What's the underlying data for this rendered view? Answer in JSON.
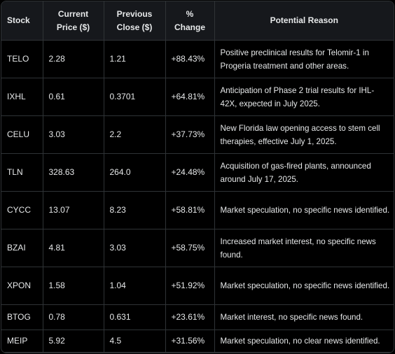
{
  "table": {
    "header": [
      "Stock",
      "Current Price ($)",
      "Previous Close ($)",
      "% Change",
      "Potential Reason"
    ],
    "rows": [
      [
        "TELO",
        "2.28",
        "1.21",
        "+88.43%",
        "Positive preclinical results for Telomir-1 in Progeria treatment and other areas."
      ],
      [
        "IXHL",
        "0.61",
        "0.3701",
        "+64.81%",
        "Anticipation of Phase 2 trial results for IHL-42X, expected in July 2025."
      ],
      [
        "CELU",
        "3.03",
        "2.2",
        "+37.73%",
        "New Florida law opening access to stem cell therapies, effective July 1, 2025."
      ],
      [
        "TLN",
        "328.63",
        "264.0",
        "+24.48%",
        "Acquisition of gas-fired plants, announced around July 17, 2025."
      ],
      [
        "CYCC",
        "13.07",
        "8.23",
        "+58.81%",
        "Market speculation, no specific news identified."
      ],
      [
        "BZAI",
        "4.81",
        "3.03",
        "+58.75%",
        "Increased market interest, no specific news found."
      ],
      [
        "XPON",
        "1.58",
        "1.04",
        "+51.92%",
        "Market speculation, no specific news identified."
      ],
      [
        "BTOG",
        "0.78",
        "0.631",
        "+23.61%",
        "Market interest, no specific news found."
      ],
      [
        "MEIP",
        "5.92",
        "4.5",
        "+31.56%",
        "Market speculation, no clear news identified."
      ]
    ]
  }
}
